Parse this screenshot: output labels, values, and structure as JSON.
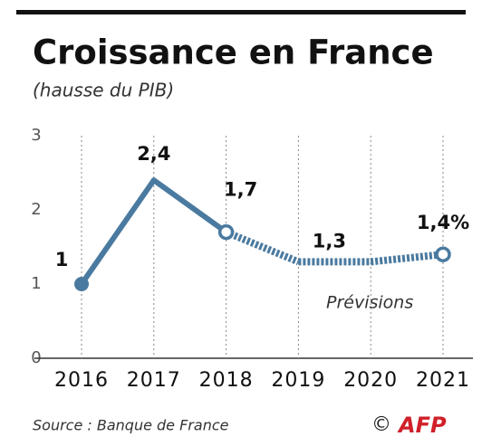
{
  "chart_data": {
    "type": "line",
    "title": "Croissance en France",
    "subtitle": "(hausse du PIB)",
    "categories": [
      "2016",
      "2017",
      "2018",
      "2019",
      "2020",
      "2021"
    ],
    "series": [
      {
        "name": "PIB",
        "color": "#4a7aa0",
        "values": [
          1,
          2.4,
          1.7,
          1.3,
          1.3,
          1.4
        ],
        "value_labels": [
          "1",
          "2,4",
          "1,7",
          "1,3",
          null,
          "1,4%"
        ]
      }
    ],
    "forecast_from": "2018",
    "annotation": "Prévisions",
    "ylim": [
      0,
      3
    ],
    "yticks": [
      0,
      1,
      2,
      3
    ],
    "grid": true,
    "source": "Source : Banque de France",
    "logo": {
      "copyright": "©",
      "text": "AFP"
    }
  }
}
